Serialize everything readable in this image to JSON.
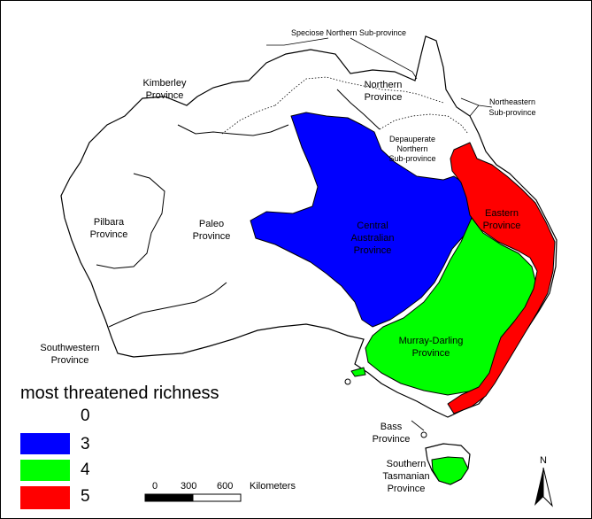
{
  "colors": {
    "richness_0": "#ffffff",
    "richness_3": "#0000ff",
    "richness_4": "#00ff00",
    "richness_5": "#ff0000",
    "outline": "#000000"
  },
  "provinces": {
    "speciose_northern": "Speciose Northern Sub-province",
    "northern_1": "Northern",
    "northern_2": "Province",
    "northeastern_1": "Northeastern",
    "northeastern_2": "Sub-province",
    "kimberley_1": "Kimberley",
    "kimberley_2": "Province",
    "depauperate_1": "Depauperate",
    "depauperate_2": "Northern",
    "depauperate_3": "Sub-province",
    "pilbara_1": "Pilbara",
    "pilbara_2": "Province",
    "paleo_1": "Paleo",
    "paleo_2": "Province",
    "central_1": "Central",
    "central_2": "Australian",
    "central_3": "Province",
    "eastern_1": "Eastern",
    "eastern_2": "Province",
    "murray_1": "Murray-Darling",
    "murray_2": "Province",
    "southwestern_1": "Southwestern",
    "southwestern_2": "Province",
    "bass_1": "Bass",
    "bass_2": "Province",
    "tasmanian_1": "Southern",
    "tasmanian_2": "Tasmanian",
    "tasmanian_3": "Province"
  },
  "legend": {
    "title": "most threatened richness",
    "items": [
      {
        "value": "0",
        "color": "#ffffff"
      },
      {
        "value": "3",
        "color": "#0000ff"
      },
      {
        "value": "4",
        "color": "#00ff00"
      },
      {
        "value": "5",
        "color": "#ff0000"
      }
    ]
  },
  "scale_bar": {
    "tick_0": "0",
    "tick_300": "300",
    "tick_600": "600",
    "unit": "Kilometers"
  },
  "north_arrow": {
    "label": "N"
  }
}
